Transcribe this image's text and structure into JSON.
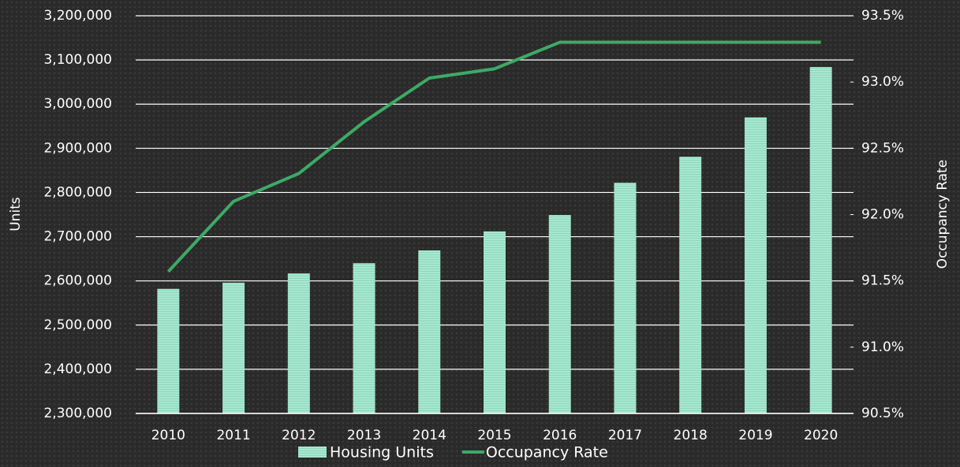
{
  "chart_data": {
    "type": "bar",
    "categories": [
      "2010",
      "2011",
      "2012",
      "2013",
      "2014",
      "2015",
      "2016",
      "2017",
      "2018",
      "2019",
      "2020"
    ],
    "series": [
      {
        "name": "Housing Units",
        "type": "bar",
        "color": "#a6e8d0",
        "values": [
          2582000,
          2596000,
          2617000,
          2640000,
          2669000,
          2712000,
          2749000,
          2822000,
          2881000,
          2970000,
          3084000
        ]
      },
      {
        "name": "Occupancy Rate",
        "type": "line",
        "axis": "y2",
        "color": "#3daa66",
        "values": [
          91.57,
          92.1,
          92.31,
          92.7,
          93.03,
          93.1,
          93.3,
          93.3,
          93.3,
          93.3,
          93.3
        ]
      }
    ],
    "ylabel": "Units",
    "y2label": "Occupancy Rate",
    "ylim": [
      2300000,
      3200000
    ],
    "yticks": [
      {
        "value": 2300000,
        "label": "2,300,000"
      },
      {
        "value": 2400000,
        "label": "2,400,000"
      },
      {
        "value": 2500000,
        "label": "2,500,000"
      },
      {
        "value": 2600000,
        "label": "2,600,000"
      },
      {
        "value": 2700000,
        "label": "2,700,000"
      },
      {
        "value": 2800000,
        "label": "2,800,000"
      },
      {
        "value": 2900000,
        "label": "2,900,000"
      },
      {
        "value": 3000000,
        "label": "3,000,000"
      },
      {
        "value": 3100000,
        "label": "3,100,000"
      },
      {
        "value": 3200000,
        "label": "3,200,000"
      }
    ],
    "y2lim": [
      90.5,
      93.5
    ],
    "y2ticks": [
      {
        "value": 90.5,
        "label": "90.5%"
      },
      {
        "value": 91.0,
        "label": "91.0%"
      },
      {
        "value": 91.5,
        "label": "91.5%"
      },
      {
        "value": 92.0,
        "label": "92.0%"
      },
      {
        "value": 92.5,
        "label": "92.5%"
      },
      {
        "value": 93.0,
        "label": "93.0%"
      },
      {
        "value": 93.5,
        "label": "93.5%"
      }
    ],
    "grid": true,
    "legend": "bottom"
  }
}
